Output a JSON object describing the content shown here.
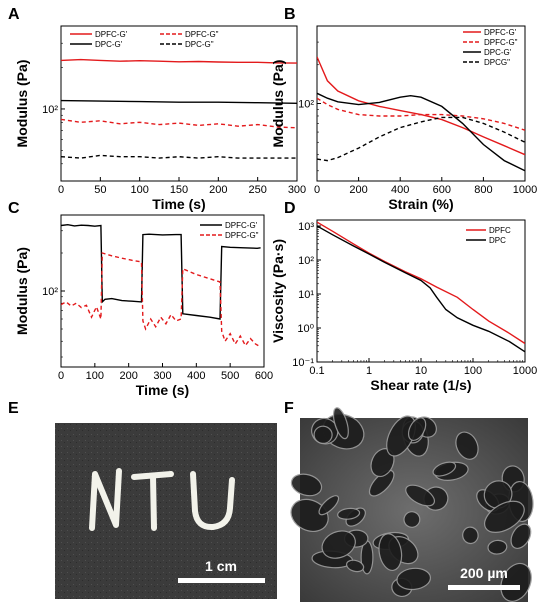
{
  "chart_data": [
    {
      "panel": "A",
      "type": "line",
      "xlabel": "Time (s)",
      "ylabel": "Modulus (Pa)",
      "xlim": [
        0,
        300
      ],
      "xticks": [
        0,
        50,
        100,
        150,
        200,
        250,
        300
      ],
      "yscale": "log",
      "ylim": [
        30,
        400
      ],
      "ytick_labels": [
        {
          "value": 100,
          "label": "10²"
        }
      ],
      "legend": "top",
      "series": [
        {
          "name": "DPFC-G'",
          "color": "#e31a1c",
          "dash": "solid",
          "x": [
            0,
            25,
            50,
            75,
            100,
            125,
            150,
            175,
            200,
            225,
            250,
            275,
            300
          ],
          "y": [
            225,
            228,
            225,
            222,
            224,
            222,
            220,
            221,
            219,
            218,
            218,
            216,
            215
          ]
        },
        {
          "name": "DPFC-G\"",
          "color": "#e31a1c",
          "dash": "dashed",
          "x": [
            0,
            25,
            50,
            75,
            100,
            125,
            150,
            175,
            200,
            225,
            250,
            275,
            300
          ],
          "y": [
            84,
            80,
            82,
            78,
            80,
            77,
            79,
            76,
            78,
            75,
            77,
            74,
            73
          ]
        },
        {
          "name": "DPC-G'",
          "color": "#000000",
          "dash": "solid",
          "x": [
            0,
            50,
            100,
            150,
            200,
            250,
            300
          ],
          "y": [
            115,
            114,
            113,
            112,
            112,
            111,
            110
          ]
        },
        {
          "name": "DPC-G\"",
          "color": "#000000",
          "dash": "dashed",
          "x": [
            0,
            25,
            50,
            75,
            100,
            125,
            150,
            175,
            200,
            225,
            250,
            275,
            300
          ],
          "y": [
            45,
            44,
            46,
            45,
            45,
            44,
            45,
            44,
            45,
            44,
            44,
            44,
            44
          ]
        }
      ]
    },
    {
      "panel": "B",
      "type": "line",
      "xlabel": "Strain (%)",
      "ylabel": "Modulus (Pa)",
      "xlim": [
        0,
        1000
      ],
      "xticks": [
        0,
        200,
        400,
        600,
        800,
        1000
      ],
      "yscale": "log",
      "ylim": [
        25,
        400
      ],
      "ytick_labels": [
        {
          "value": 100,
          "label": "10²"
        }
      ],
      "legend": "top-right",
      "series": [
        {
          "name": "DPFC-G'",
          "color": "#e31a1c",
          "dash": "solid",
          "x": [
            0,
            50,
            100,
            200,
            300,
            400,
            500,
            600,
            700,
            800,
            900,
            1000
          ],
          "y": [
            230,
            150,
            125,
            105,
            95,
            88,
            82,
            75,
            65,
            55,
            47,
            40
          ]
        },
        {
          "name": "DPFC-G\"",
          "color": "#e31a1c",
          "dash": "dashed",
          "x": [
            0,
            50,
            100,
            200,
            300,
            400,
            500,
            600,
            700,
            800,
            900,
            1000
          ],
          "y": [
            110,
            98,
            90,
            82,
            80,
            80,
            82,
            82,
            80,
            76,
            70,
            62
          ]
        },
        {
          "name": "DPC-G'",
          "color": "#000000",
          "dash": "solid",
          "x": [
            0,
            50,
            100,
            200,
            300,
            400,
            450,
            500,
            600,
            700,
            800,
            900,
            1000
          ],
          "y": [
            120,
            110,
            103,
            98,
            102,
            112,
            115,
            112,
            95,
            70,
            48,
            36,
            30
          ]
        },
        {
          "name": "DPCG\"",
          "color": "#000000",
          "dash": "dashed",
          "x": [
            0,
            50,
            100,
            200,
            300,
            400,
            500,
            600,
            700,
            800,
            900,
            1000
          ],
          "y": [
            37,
            36,
            38,
            45,
            55,
            65,
            72,
            78,
            78,
            70,
            60,
            50
          ]
        }
      ]
    },
    {
      "panel": "C",
      "type": "line",
      "xlabel": "Time (s)",
      "ylabel": "Modulus (Pa)",
      "xlim": [
        0,
        600
      ],
      "xticks": [
        0,
        100,
        200,
        300,
        400,
        500,
        600
      ],
      "yscale": "log",
      "ylim": [
        25,
        400
      ],
      "ytick_labels": [
        {
          "value": 100,
          "label": "10²"
        }
      ],
      "legend": "top-right",
      "series": [
        {
          "name": "DPFC-G'",
          "color": "#000000",
          "dash": "solid",
          "x": [
            0,
            20,
            40,
            60,
            80,
            100,
            118,
            122,
            130,
            150,
            180,
            210,
            238,
            242,
            260,
            300,
            340,
            355,
            360,
            400,
            440,
            470,
            475,
            500,
            540,
            580,
            590
          ],
          "y": [
            330,
            335,
            328,
            332,
            330,
            326,
            330,
            82,
            86,
            87,
            84,
            83,
            82,
            280,
            282,
            278,
            280,
            280,
            66,
            64,
            62,
            60,
            225,
            222,
            220,
            218,
            220
          ]
        },
        {
          "name": "DPFC-G\"",
          "color": "#e31a1c",
          "dash": "dashed",
          "x": [
            0,
            15,
            30,
            45,
            60,
            75,
            90,
            105,
            118,
            122,
            150,
            180,
            210,
            238,
            242,
            250,
            265,
            280,
            295,
            310,
            325,
            340,
            355,
            360,
            400,
            440,
            470,
            475,
            485,
            500,
            515,
            530,
            545,
            560,
            575,
            590
          ],
          "y": [
            78,
            82,
            76,
            80,
            74,
            77,
            62,
            75,
            60,
            200,
            190,
            182,
            175,
            170,
            58,
            50,
            60,
            52,
            62,
            55,
            65,
            58,
            60,
            150,
            135,
            125,
            118,
            48,
            40,
            46,
            38,
            44,
            37,
            42,
            38,
            36
          ]
        }
      ]
    },
    {
      "panel": "D",
      "type": "line",
      "xlabel": "Shear rate (1/s)",
      "ylabel": "Viscosity (Pa·s)",
      "xscale": "log",
      "yscale": "log",
      "xlim": [
        0.1,
        1000
      ],
      "ylim": [
        0.1,
        1500
      ],
      "xtick_labels": [
        {
          "value": 0.1,
          "label": "0.1"
        },
        {
          "value": 1,
          "label": "1"
        },
        {
          "value": 10,
          "label": "10"
        },
        {
          "value": 100,
          "label": "100"
        },
        {
          "value": 1000,
          "label": "1000"
        }
      ],
      "ytick_labels": [
        {
          "value": 0.1,
          "label": "10⁻¹"
        },
        {
          "value": 1,
          "label": "10⁰"
        },
        {
          "value": 10,
          "label": "10¹"
        },
        {
          "value": 100,
          "label": "10²"
        },
        {
          "value": 1000,
          "label": "10³"
        }
      ],
      "legend": "top-right",
      "series": [
        {
          "name": "DPFC",
          "color": "#e31a1c",
          "dash": "solid",
          "x": [
            0.1,
            0.2,
            0.5,
            1,
            2,
            5,
            10,
            20,
            50,
            100,
            200,
            500,
            1000
          ],
          "y": [
            1300,
            700,
            300,
            160,
            90,
            45,
            28,
            16,
            8,
            3.5,
            1.6,
            0.7,
            0.35
          ]
        },
        {
          "name": "DPC",
          "color": "#000000",
          "dash": "solid",
          "x": [
            0.1,
            0.2,
            0.5,
            1,
            2,
            5,
            10,
            15,
            20,
            30,
            50,
            100,
            200,
            500,
            1000
          ],
          "y": [
            1000,
            550,
            260,
            150,
            85,
            42,
            25,
            15,
            8,
            3.5,
            2.0,
            1.2,
            0.8,
            0.4,
            0.2
          ]
        }
      ]
    }
  ],
  "images": [
    {
      "panel": "E",
      "letters": "NTU",
      "scale_bar_label": "1 cm"
    },
    {
      "panel": "F",
      "scale_bar_label": "200 µm"
    }
  ]
}
